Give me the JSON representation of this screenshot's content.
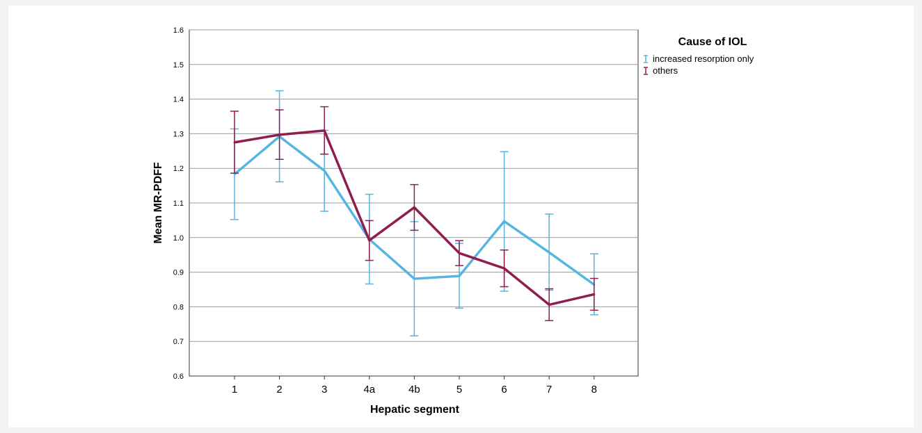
{
  "chart_data": {
    "type": "line",
    "xlabel": "Hepatic segment",
    "ylabel": "Mean MR-PDFF",
    "legend_title": "Cause of IOL",
    "legend_position": "top-right",
    "grid": "horizontal",
    "error_bars": true,
    "categories": [
      "1",
      "2",
      "3",
      "4a",
      "4b",
      "5",
      "6",
      "7",
      "8"
    ],
    "ylim": [
      0.6,
      1.6
    ],
    "yticks": [
      "0.6",
      "0.7",
      "0.8",
      "0.9",
      "1.0",
      "1.1",
      "1.2",
      "1.3",
      "1.4",
      "1.5",
      "1.6"
    ],
    "series": [
      {
        "name": "increased resorption only",
        "color": "#57b5e0",
        "values": [
          1.183,
          1.292,
          1.193,
          0.995,
          0.881,
          0.889,
          1.047,
          0.957,
          0.864
        ],
        "lower": [
          1.052,
          1.161,
          1.076,
          0.866,
          0.716,
          0.796,
          0.845,
          0.848,
          0.777
        ],
        "upper": [
          1.314,
          1.424,
          1.31,
          1.125,
          1.046,
          0.983,
          1.248,
          1.068,
          0.953
        ]
      },
      {
        "name": "others",
        "color": "#8f1d4f",
        "values": [
          1.275,
          1.297,
          1.309,
          0.992,
          1.087,
          0.955,
          0.911,
          0.806,
          0.836
        ],
        "lower": [
          1.186,
          1.226,
          1.241,
          0.934,
          1.021,
          0.919,
          0.858,
          0.76,
          0.79
        ],
        "upper": [
          1.365,
          1.369,
          1.378,
          1.049,
          1.153,
          0.991,
          0.964,
          0.852,
          0.882
        ]
      }
    ]
  }
}
